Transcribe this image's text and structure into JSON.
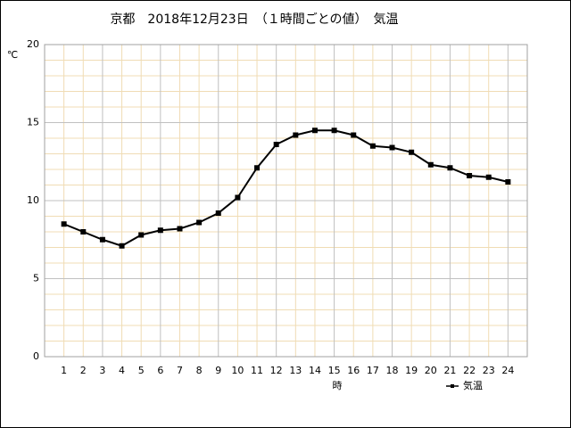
{
  "chart_data": {
    "type": "line",
    "title": "京都　2018年12月23日　（１時間ごとの値）　気温",
    "y_unit": "℃",
    "xlabel": "時",
    "x": [
      1,
      2,
      3,
      4,
      5,
      6,
      7,
      8,
      9,
      10,
      11,
      12,
      13,
      14,
      15,
      16,
      17,
      18,
      19,
      20,
      21,
      22,
      23,
      24
    ],
    "xlim": [
      0,
      25
    ],
    "xticks": [
      1,
      2,
      3,
      4,
      5,
      6,
      7,
      8,
      9,
      10,
      11,
      12,
      13,
      14,
      15,
      16,
      17,
      18,
      19,
      20,
      21,
      22,
      23,
      24
    ],
    "ylim": [
      0,
      20
    ],
    "yticks": [
      0,
      5,
      10,
      15,
      20
    ],
    "grid": true,
    "legend": "bottom-right",
    "series": [
      {
        "name": "気温",
        "color": "#000000",
        "values": [
          8.5,
          8.0,
          7.5,
          7.1,
          7.8,
          8.1,
          8.2,
          8.6,
          9.2,
          10.2,
          12.1,
          13.6,
          14.2,
          14.5,
          14.5,
          14.2,
          13.5,
          13.4,
          13.1,
          12.3,
          12.1,
          11.6,
          11.5,
          11.2
        ]
      }
    ]
  }
}
